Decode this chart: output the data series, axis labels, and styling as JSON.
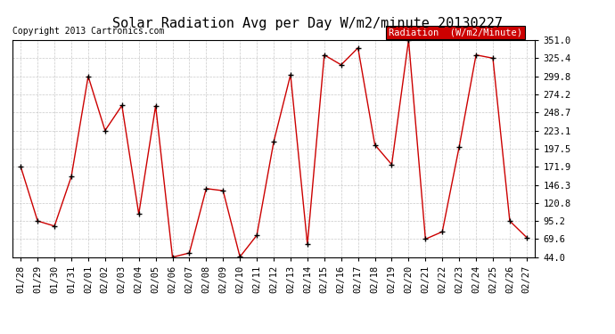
{
  "title": "Solar Radiation Avg per Day W/m2/minute 20130227",
  "copyright": "Copyright 2013 Cartronics.com",
  "legend_label": "Radiation  (W/m2/Minute)",
  "dates": [
    "01/28",
    "01/29",
    "01/30",
    "01/31",
    "02/01",
    "02/02",
    "02/03",
    "02/04",
    "02/05",
    "02/06",
    "02/07",
    "02/08",
    "02/09",
    "02/10",
    "02/11",
    "02/12",
    "02/13",
    "02/14",
    "02/15",
    "02/16",
    "02/17",
    "02/18",
    "02/19",
    "02/20",
    "02/21",
    "02/22",
    "02/23",
    "02/24",
    "02/25",
    "02/26",
    "02/27"
  ],
  "values": [
    171.9,
    95.2,
    88.0,
    158.0,
    299.8,
    223.1,
    258.5,
    105.0,
    258.0,
    44.0,
    50.0,
    141.0,
    138.0,
    44.5,
    75.0,
    207.0,
    302.0,
    62.0,
    330.0,
    316.0,
    340.0,
    203.0,
    175.0,
    351.0,
    69.6,
    80.0,
    200.0,
    330.0,
    325.4,
    95.2,
    72.0
  ],
  "ylim": [
    44.0,
    351.0
  ],
  "yticks": [
    44.0,
    69.6,
    95.2,
    120.8,
    146.3,
    171.9,
    197.5,
    223.1,
    248.7,
    274.2,
    299.8,
    325.4,
    351.0
  ],
  "line_color": "#cc0000",
  "marker_color": "#000000",
  "bg_color": "#ffffff",
  "grid_color": "#bbbbbb",
  "legend_bg": "#cc0000",
  "legend_text_color": "#ffffff",
  "title_fontsize": 11,
  "copyright_fontsize": 7,
  "tick_fontsize": 7.5,
  "legend_fontsize": 7.5
}
